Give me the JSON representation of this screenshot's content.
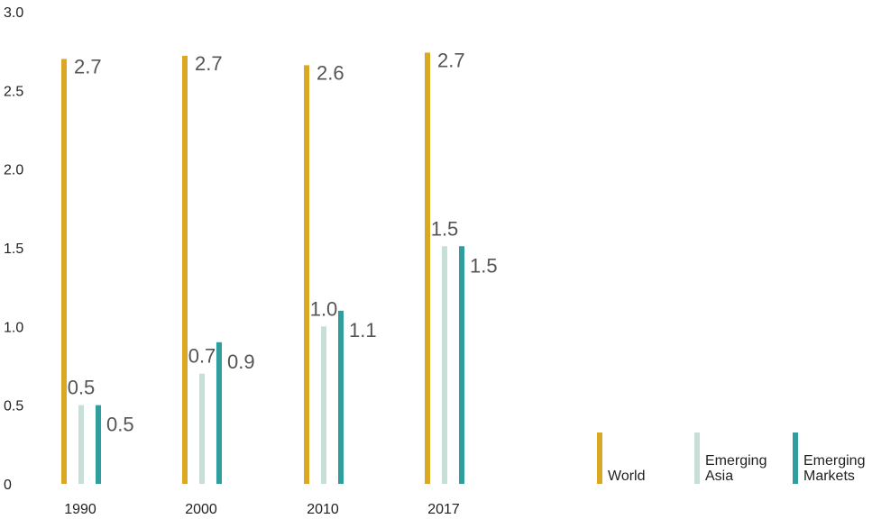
{
  "chart_data": {
    "type": "bar",
    "categories": [
      "1990",
      "2000",
      "2010",
      "2017"
    ],
    "series": [
      {
        "name": "World",
        "color": "#dba823",
        "values": [
          2.7,
          2.7,
          2.6,
          2.7
        ],
        "heights": [
          2.7,
          2.72,
          2.66,
          2.74
        ]
      },
      {
        "name": "Emerging Asia",
        "color": "#c6dfd8",
        "values": [
          0.5,
          0.7,
          1.0,
          1.5
        ],
        "heights": [
          0.5,
          0.7,
          1.0,
          1.51
        ]
      },
      {
        "name": "Emerging Markets",
        "color": "#2f9e9d",
        "values": [
          0.5,
          0.9,
          1.1,
          1.5
        ],
        "heights": [
          0.5,
          0.9,
          1.1,
          1.51
        ]
      }
    ],
    "yticks": [
      "0",
      "0.5",
      "1.0",
      "1.5",
      "2.0",
      "2.5",
      "3.0"
    ],
    "ylim": [
      0,
      3.0
    ],
    "grid": false,
    "legend_position": "bottom-right"
  },
  "legend": {
    "world": "World",
    "emerging_asia": "Emerging\nAsia",
    "emerging_markets": "Emerging\nMarkets"
  }
}
